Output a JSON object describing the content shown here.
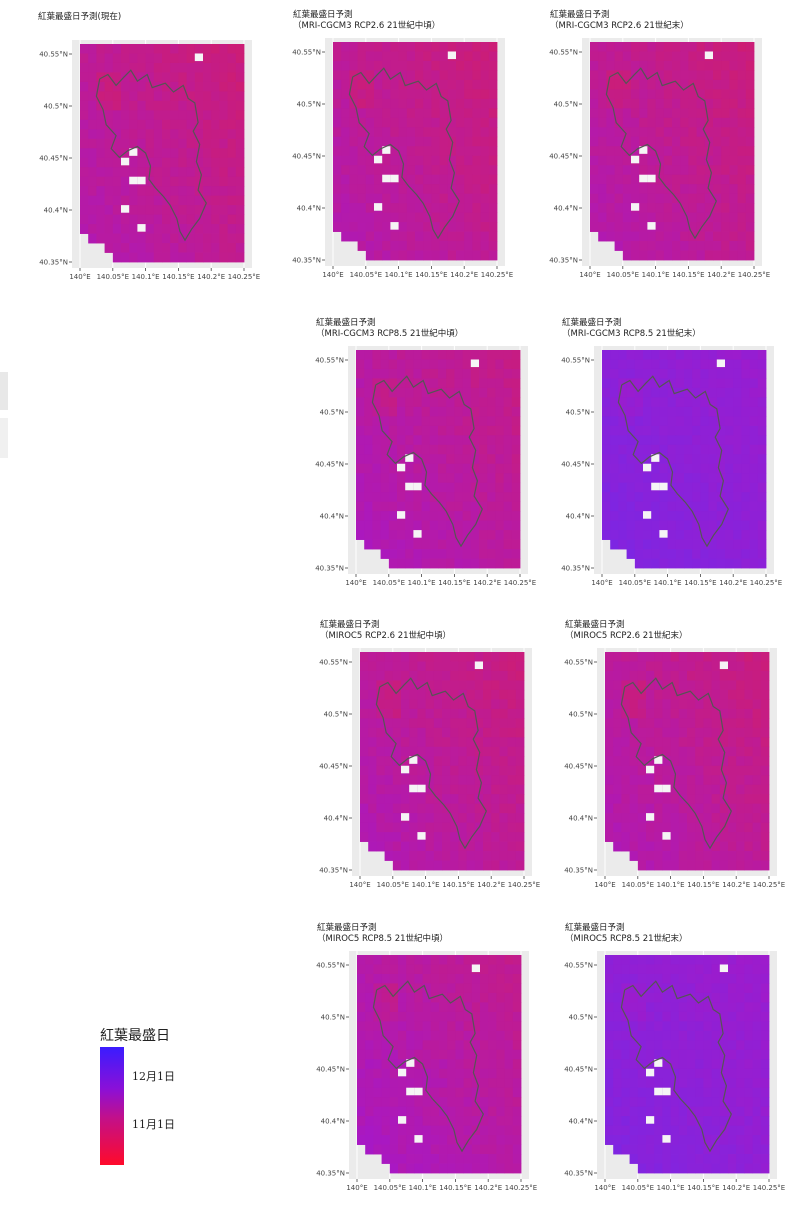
{
  "chart_data": [
    {
      "type": "heatmap",
      "title": "紅葉最盛日予測(現在)",
      "xlabel": "",
      "ylabel": "",
      "tint": 0.3,
      "xticks": [
        "140°E",
        "140.05°E",
        "140.1°E",
        "140.15°E",
        "140.2°E",
        "140.25°E"
      ],
      "yticks": [
        "40.55°N",
        "40.5°N",
        "40.45°N",
        "40.4°N",
        "40.35°N"
      ]
    },
    {
      "type": "heatmap",
      "title": "紅葉最盛日予測\n（MRI-CGCM3 RCP2.6 21世紀中頃）",
      "xlabel": "",
      "ylabel": "",
      "tint": 0.3,
      "xticks": [
        "140°E",
        "140.05°E",
        "140.1°E",
        "140.15°E",
        "140.2°E",
        "140.25°E"
      ],
      "yticks": [
        "40.55°N",
        "40.5°N",
        "40.45°N",
        "40.4°N",
        "40.35°N"
      ]
    },
    {
      "type": "heatmap",
      "title": "紅葉最盛日予測\n（MRI-CGCM3 RCP2.6 21世紀末）",
      "xlabel": "",
      "ylabel": "",
      "tint": 0.3,
      "xticks": [
        "140°E",
        "140.05°E",
        "140.1°E",
        "140.15°E",
        "140.2°E",
        "140.25°E"
      ],
      "yticks": [
        "40.55°N",
        "40.5°N",
        "40.45°N",
        "40.4°N",
        "40.35°N"
      ]
    },
    {
      "type": "heatmap",
      "title": "紅葉最盛日予測\n（MRI-CGCM3 RCP8.5 21世紀中頃）",
      "xlabel": "",
      "ylabel": "",
      "tint": 0.35,
      "xticks": [
        "140°E",
        "140.05°E",
        "140.1°E",
        "140.15°E",
        "140.2°E",
        "140.25°E"
      ],
      "yticks": [
        "40.55°N",
        "40.5°N",
        "40.45°N",
        "40.4°N",
        "40.35°N"
      ]
    },
    {
      "type": "heatmap",
      "title": "紅葉最盛日予測\n（MRI-CGCM3 RCP8.5 21世紀末）",
      "xlabel": "",
      "ylabel": "",
      "tint": 0.72,
      "xticks": [
        "140°E",
        "140.05°E",
        "140.1°E",
        "140.15°E",
        "140.2°E",
        "140.25°E"
      ],
      "yticks": [
        "40.55°N",
        "40.5°N",
        "40.45°N",
        "40.4°N",
        "40.35°N"
      ]
    },
    {
      "type": "heatmap",
      "title": "紅葉最盛日予測\n（MIROC5 RCP2.6 21世紀中頃）",
      "xlabel": "",
      "ylabel": "",
      "tint": 0.32,
      "xticks": [
        "140°E",
        "140.05°E",
        "140.1°E",
        "140.15°E",
        "140.2°E",
        "140.25°E"
      ],
      "yticks": [
        "40.55°N",
        "40.5°N",
        "40.45°N",
        "40.4°N",
        "40.35°N"
      ]
    },
    {
      "type": "heatmap",
      "title": "紅葉最盛日予測\n（MIROC5 RCP2.6 21世紀末）",
      "xlabel": "",
      "ylabel": "",
      "tint": 0.32,
      "xticks": [
        "140°E",
        "140.05°E",
        "140.1°E",
        "140.15°E",
        "140.2°E",
        "140.25°E"
      ],
      "yticks": [
        "40.55°N",
        "40.5°N",
        "40.45°N",
        "40.4°N",
        "40.35°N"
      ]
    },
    {
      "type": "heatmap",
      "title": "紅葉最盛日予測\n（MIROC5 RCP8.5 21世紀中頃）",
      "xlabel": "",
      "ylabel": "",
      "tint": 0.38,
      "xticks": [
        "140°E",
        "140.05°E",
        "140.1°E",
        "140.15°E",
        "140.2°E",
        "140.25°E"
      ],
      "yticks": [
        "40.55°N",
        "40.5°N",
        "40.45°N",
        "40.4°N",
        "40.35°N"
      ]
    },
    {
      "type": "heatmap",
      "title": "紅葉最盛日予測\n（MIROC5 RCP8.5 21世紀末）",
      "xlabel": "",
      "ylabel": "",
      "tint": 0.7,
      "xticks": [
        "140°E",
        "140.05°E",
        "140.1°E",
        "140.15°E",
        "140.2°E",
        "140.25°E"
      ],
      "yticks": [
        "40.55°N",
        "40.5°N",
        "40.45°N",
        "40.4°N",
        "40.35°N"
      ]
    }
  ],
  "legend": {
    "title": "紅葉最盛日",
    "labels": [
      "12月1日",
      "11月1日"
    ],
    "colors": {
      "late": "#3a1cff",
      "mid": "#8a10d8",
      "early": "#ff0a2a"
    }
  }
}
